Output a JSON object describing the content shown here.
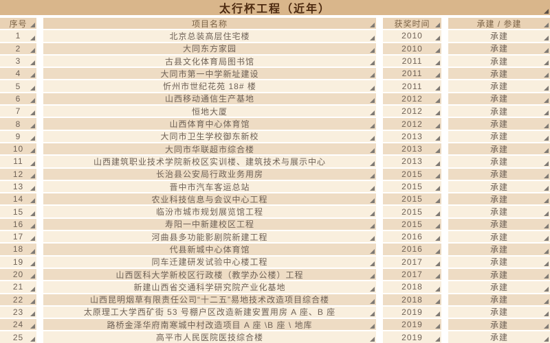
{
  "title": "太行杯工程（近年）",
  "columns": {
    "index": "序号",
    "name": "项目名称",
    "year": "获奖时间",
    "role": "承建 / 参建"
  },
  "rows": [
    {
      "index": "1",
      "name": "北京总装高层住宅楼",
      "year": "2010",
      "role": "承建"
    },
    {
      "index": "2",
      "name": "大同东方家园",
      "year": "2010",
      "role": "承建"
    },
    {
      "index": "3",
      "name": "古县文化体育局图书馆",
      "year": "2011",
      "role": "承建"
    },
    {
      "index": "4",
      "name": "大同市第一中学新址建设",
      "year": "2011",
      "role": "承建"
    },
    {
      "index": "5",
      "name": "忻州市世纪花苑 18# 楼",
      "year": "2011",
      "role": "承建"
    },
    {
      "index": "6",
      "name": "山西移动通信生产基地",
      "year": "2012",
      "role": "承建"
    },
    {
      "index": "7",
      "name": "恒地大厦",
      "year": "2012",
      "role": "承建"
    },
    {
      "index": "8",
      "name": "山西体育中心体育馆",
      "year": "2012",
      "role": "承建"
    },
    {
      "index": "9",
      "name": "大同市卫生学校御东新校",
      "year": "2013",
      "role": "承建"
    },
    {
      "index": "10",
      "name": "大同市华联超市综合楼",
      "year": "2013",
      "role": "承建"
    },
    {
      "index": "11",
      "name": "山西建筑职业技术学院新校区实训楼、建筑技术与展示中心",
      "year": "2013",
      "role": "承建"
    },
    {
      "index": "12",
      "name": "长治县公安局行政业务用房",
      "year": "2015",
      "role": "承建"
    },
    {
      "index": "13",
      "name": "晋中市汽车客运总站",
      "year": "2015",
      "role": "承建"
    },
    {
      "index": "14",
      "name": "农业科技信息与会议中心工程",
      "year": "2015",
      "role": "承建"
    },
    {
      "index": "15",
      "name": "临汾市城市规划展览馆工程",
      "year": "2015",
      "role": "承建"
    },
    {
      "index": "16",
      "name": "寿阳一中新建校区工程",
      "year": "2015",
      "role": "承建"
    },
    {
      "index": "17",
      "name": "河曲县多功能影剧院新建工程",
      "year": "2016",
      "role": "承建"
    },
    {
      "index": "18",
      "name": "代县新城中心体育馆",
      "year": "2016",
      "role": "承建"
    },
    {
      "index": "19",
      "name": "同车迁建研发试验中心楼工程",
      "year": "2017",
      "role": "承建"
    },
    {
      "index": "20",
      "name": "山西医科大学新校区行政楼（教学办公楼）工程",
      "year": "2017",
      "role": "承建"
    },
    {
      "index": "21",
      "name": "新建山西省交通科学研究院产业化基地",
      "year": "2018",
      "role": "承建"
    },
    {
      "index": "22",
      "name": "山西昆明烟草有限责任公司“十二五”易地技术改造项目综合楼",
      "year": "2018",
      "role": "承建"
    },
    {
      "index": "23",
      "name": "太原理工大学西矿街 53 号棚户区改造新建安置用房 A 座、B 座",
      "year": "2019",
      "role": "承建"
    },
    {
      "index": "24",
      "name": "路桥金泽华府南寒城中村改造项目 A 座 \\B 座 \\ 地库",
      "year": "2019",
      "role": "承建"
    },
    {
      "index": "25",
      "name": "高平市人民医院医技综合楼",
      "year": "2019",
      "role": "承建"
    }
  ],
  "colors": {
    "title_bg": "#d9b68b",
    "title_text": "#4d2a10",
    "header_bg": "#e9d2b5",
    "row_odd_bg": "#f9efde",
    "row_even_bg": "#eedcc4",
    "cell_text": "#6e6156",
    "corner_triangle": "#7f7a74"
  }
}
